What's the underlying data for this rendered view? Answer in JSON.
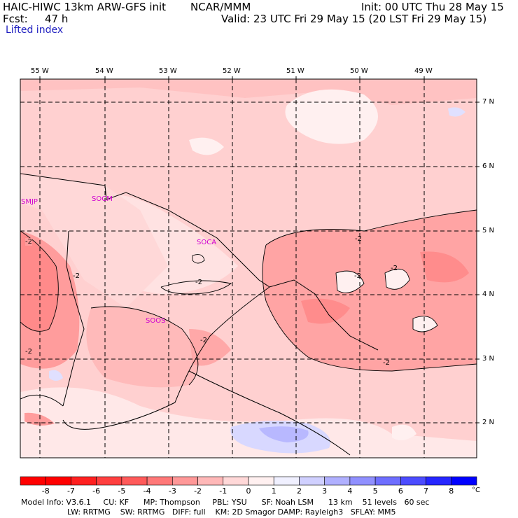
{
  "header": {
    "model": "HAIC-HIWC 13km ARW-GFS init",
    "org": "NCAR/MMM",
    "init": "Init: 00 UTC Thu 28 May 15",
    "fcst_label": "Fcst:",
    "fcst_hours": "47 h",
    "valid": "Valid: 23 UTC Fri 29 May 15 (20 LST Fri 29 May 15)",
    "field": "Lifted index"
  },
  "map": {
    "lon_labels": [
      "55 W",
      "54 W",
      "53 W",
      "52 W",
      "51 W",
      "50 W",
      "49 W"
    ],
    "lat_labels": [
      "7 N",
      "6 N",
      "5 N",
      "4 N",
      "3 N",
      "2 N"
    ],
    "contour_labels": [
      "-2",
      "-2",
      "-2",
      "-2",
      "-2",
      "-2",
      "-2",
      "-2",
      "-2"
    ],
    "stations": [
      "SMJP",
      "SOCM",
      "SOCA",
      "SOOS"
    ]
  },
  "colorbar": {
    "labels": [
      "-8",
      "-7",
      "-6",
      "-5",
      "-4",
      "-3",
      "-2",
      "-1",
      "0",
      "1",
      "2",
      "3",
      "4",
      "5",
      "6",
      "7",
      "8"
    ],
    "unit": "°C",
    "colors": [
      "#ff0000",
      "#ff2020",
      "#ff3f3f",
      "#ff5a5a",
      "#ff7878",
      "#ff9898",
      "#ffb8b8",
      "#ffd8d8",
      "#fff0f0",
      "#f0f0ff",
      "#d0d0ff",
      "#b0b0ff",
      "#9090ff",
      "#6e6eff",
      "#4c4cff",
      "#2626ff",
      "#0000ff"
    ]
  },
  "footer": {
    "line1": "Model Info: V3.6.1     CU: KF      MP: Thompson     PBL: YSU      SF: Noah LSM      13 km    51 levels   60 sec",
    "line2": "LW: RRTMG    SW: RRTMG   DIFF: full    KM: 2D Smagor DAMP: Rayleigh3   SFLAY: MM5"
  }
}
